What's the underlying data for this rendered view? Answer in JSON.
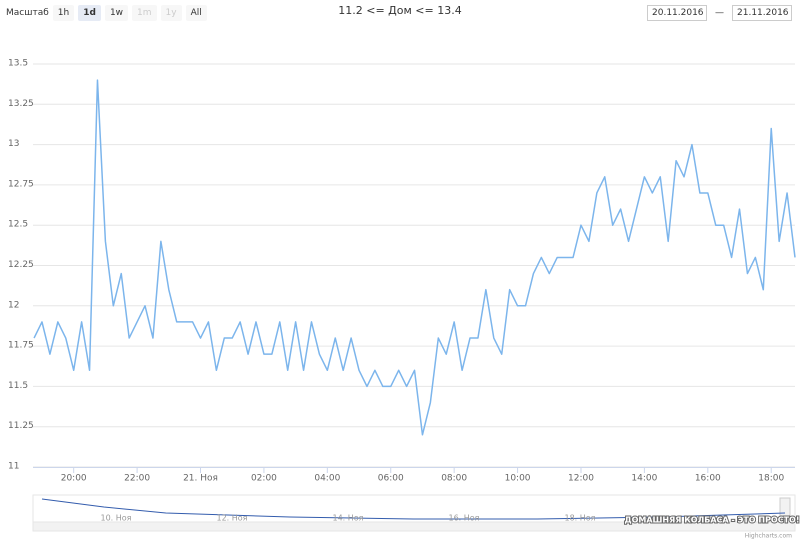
{
  "chart_data": {
    "type": "line",
    "title": "11.2 <= Дом <= 13.4",
    "range_selector": {
      "label": "Масштаб",
      "buttons": [
        "1h",
        "1d",
        "1w",
        "1m",
        "1y",
        "All"
      ],
      "selected": 1,
      "disabled": [
        3,
        4
      ]
    },
    "date_from": "20.11.2016",
    "date_separator": "—",
    "date_to": "21.11.2016",
    "color": "#7cb5ec",
    "grid": true,
    "x": [
      "2016-11-20T18:45",
      "2016-11-20T19:00",
      "2016-11-20T19:15",
      "2016-11-20T19:30",
      "2016-11-20T19:45",
      "2016-11-20T20:00",
      "2016-11-20T20:15",
      "2016-11-20T20:30",
      "2016-11-20T20:45",
      "2016-11-20T21:00",
      "2016-11-20T21:15",
      "2016-11-20T21:30",
      "2016-11-20T21:45",
      "2016-11-20T22:00",
      "2016-11-20T22:15",
      "2016-11-20T22:30",
      "2016-11-20T22:45",
      "2016-11-20T23:00",
      "2016-11-20T23:15",
      "2016-11-20T23:30",
      "2016-11-20T23:45",
      "2016-11-21T00:00",
      "2016-11-21T00:15",
      "2016-11-21T00:30",
      "2016-11-21T00:45",
      "2016-11-21T01:00",
      "2016-11-21T01:15",
      "2016-11-21T01:30",
      "2016-11-21T01:45",
      "2016-11-21T02:00",
      "2016-11-21T02:15",
      "2016-11-21T02:30",
      "2016-11-21T02:45",
      "2016-11-21T03:00",
      "2016-11-21T03:15",
      "2016-11-21T03:30",
      "2016-11-21T03:45",
      "2016-11-21T04:00",
      "2016-11-21T04:15",
      "2016-11-21T04:30",
      "2016-11-21T04:45",
      "2016-11-21T05:00",
      "2016-11-21T05:15",
      "2016-11-21T05:30",
      "2016-11-21T05:45",
      "2016-11-21T06:00",
      "2016-11-21T06:15",
      "2016-11-21T06:30",
      "2016-11-21T06:45",
      "2016-11-21T07:00",
      "2016-11-21T07:15",
      "2016-11-21T07:30",
      "2016-11-21T07:45",
      "2016-11-21T08:00",
      "2016-11-21T08:15",
      "2016-11-21T08:30",
      "2016-11-21T08:45",
      "2016-11-21T09:00",
      "2016-11-21T09:15",
      "2016-11-21T09:30",
      "2016-11-21T09:45",
      "2016-11-21T10:00",
      "2016-11-21T10:15",
      "2016-11-21T10:30",
      "2016-11-21T10:45",
      "2016-11-21T11:00",
      "2016-11-21T11:15",
      "2016-11-21T11:30",
      "2016-11-21T11:45",
      "2016-11-21T12:00",
      "2016-11-21T12:15",
      "2016-11-21T12:30",
      "2016-11-21T12:45",
      "2016-11-21T13:00",
      "2016-11-21T13:15",
      "2016-11-21T13:30",
      "2016-11-21T13:45",
      "2016-11-21T14:00",
      "2016-11-21T14:15",
      "2016-11-21T14:30",
      "2016-11-21T14:45",
      "2016-11-21T15:00",
      "2016-11-21T15:15",
      "2016-11-21T15:30",
      "2016-11-21T15:45",
      "2016-11-21T16:00",
      "2016-11-21T16:15",
      "2016-11-21T16:30",
      "2016-11-21T16:45",
      "2016-11-21T17:00",
      "2016-11-21T17:15",
      "2016-11-21T17:30",
      "2016-11-21T17:45",
      "2016-11-21T18:00",
      "2016-11-21T18:15",
      "2016-11-21T18:30",
      "2016-11-21T18:45"
    ],
    "values": [
      11.8,
      11.9,
      11.7,
      11.9,
      11.8,
      11.6,
      11.9,
      11.6,
      13.4,
      12.4,
      12.0,
      12.2,
      11.8,
      11.9,
      12.0,
      11.8,
      12.4,
      12.1,
      11.9,
      11.9,
      11.9,
      11.8,
      11.9,
      11.6,
      11.8,
      11.8,
      11.9,
      11.7,
      11.9,
      11.7,
      11.7,
      11.9,
      11.6,
      11.9,
      11.6,
      11.9,
      11.7,
      11.6,
      11.8,
      11.6,
      11.8,
      11.6,
      11.5,
      11.6,
      11.5,
      11.5,
      11.6,
      11.5,
      11.6,
      11.2,
      11.4,
      11.8,
      11.7,
      11.9,
      11.6,
      11.8,
      11.8,
      12.1,
      11.8,
      11.7,
      12.1,
      12.0,
      12.0,
      12.2,
      12.3,
      12.2,
      12.3,
      12.3,
      12.3,
      12.5,
      12.4,
      12.7,
      12.8,
      12.5,
      12.6,
      12.4,
      12.6,
      12.8,
      12.7,
      12.8,
      12.4,
      12.9,
      12.8,
      13.0,
      12.7,
      12.7,
      12.5,
      12.5,
      12.3,
      12.6,
      12.2,
      12.3,
      12.1,
      13.1,
      12.4,
      12.7,
      12.3
    ],
    "xlim": [
      "2016-11-20T18:43",
      "2016-11-21T18:45"
    ],
    "xticks": [
      {
        "value": "2016-11-20T20:00",
        "label": "20:00"
      },
      {
        "value": "2016-11-20T22:00",
        "label": "22:00"
      },
      {
        "value": "2016-11-21T00:00",
        "label": "21. Ноя"
      },
      {
        "value": "2016-11-21T02:00",
        "label": "02:00"
      },
      {
        "value": "2016-11-21T04:00",
        "label": "04:00"
      },
      {
        "value": "2016-11-21T06:00",
        "label": "06:00"
      },
      {
        "value": "2016-11-21T08:00",
        "label": "08:00"
      },
      {
        "value": "2016-11-21T10:00",
        "label": "10:00"
      },
      {
        "value": "2016-11-21T12:00",
        "label": "12:00"
      },
      {
        "value": "2016-11-21T14:00",
        "label": "14:00"
      },
      {
        "value": "2016-11-21T16:00",
        "label": "16:00"
      },
      {
        "value": "2016-11-21T18:00",
        "label": "18:00"
      }
    ],
    "ylim": [
      11,
      13.5
    ],
    "yticks": [
      11,
      11.25,
      11.5,
      11.75,
      12,
      12.25,
      12.5,
      12.75,
      13,
      13.25,
      13.5
    ],
    "navigator": {
      "labels": [
        "10. Ноя",
        "12. Ноя",
        "14. Ноя",
        "16. Ноя",
        "18. Ноя"
      ],
      "values": [
        12.8,
        12.4,
        12.1,
        12.0,
        11.9,
        11.85,
        11.8,
        11.8,
        11.8,
        11.85,
        11.9,
        12.0,
        12.1
      ]
    },
    "watermark": "ДОМАШНЯЯ КОЛБАСА - ЭТО ПРОСТО!",
    "credits": "Highcharts.com"
  }
}
